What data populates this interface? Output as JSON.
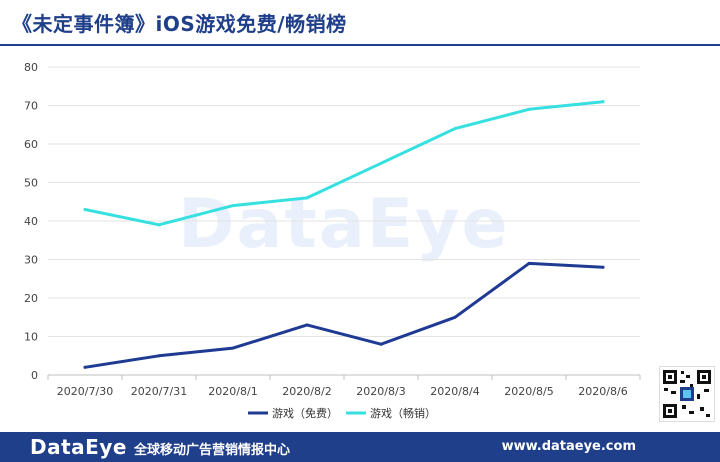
{
  "header": {
    "title": "《未定事件簿》iOS游戏免费/畅销榜"
  },
  "watermark": "DataEye",
  "chart_data": {
    "type": "line",
    "categories": [
      "2020/7/30",
      "2020/7/31",
      "2020/8/1",
      "2020/8/2",
      "2020/8/3",
      "2020/8/4",
      "2020/8/5",
      "2020/8/6"
    ],
    "series": [
      {
        "name": "游戏（免费）",
        "values": [
          2,
          5,
          7,
          13,
          8,
          15,
          29,
          28
        ],
        "color": "#1f3a93"
      },
      {
        "name": "游戏（畅销）",
        "values": [
          43,
          39,
          44,
          46,
          55,
          64,
          69,
          71
        ],
        "color": "#36e0e0"
      }
    ],
    "yticks": [
      0,
      10,
      20,
      30,
      40,
      50,
      60,
      70,
      80
    ],
    "ylim": [
      0,
      80
    ],
    "grid": true,
    "legend_position": "bottom"
  },
  "footer": {
    "brand": "DataEye",
    "slogan": "全球移动广告营销情报中心",
    "url": "www.dataeye.com"
  }
}
